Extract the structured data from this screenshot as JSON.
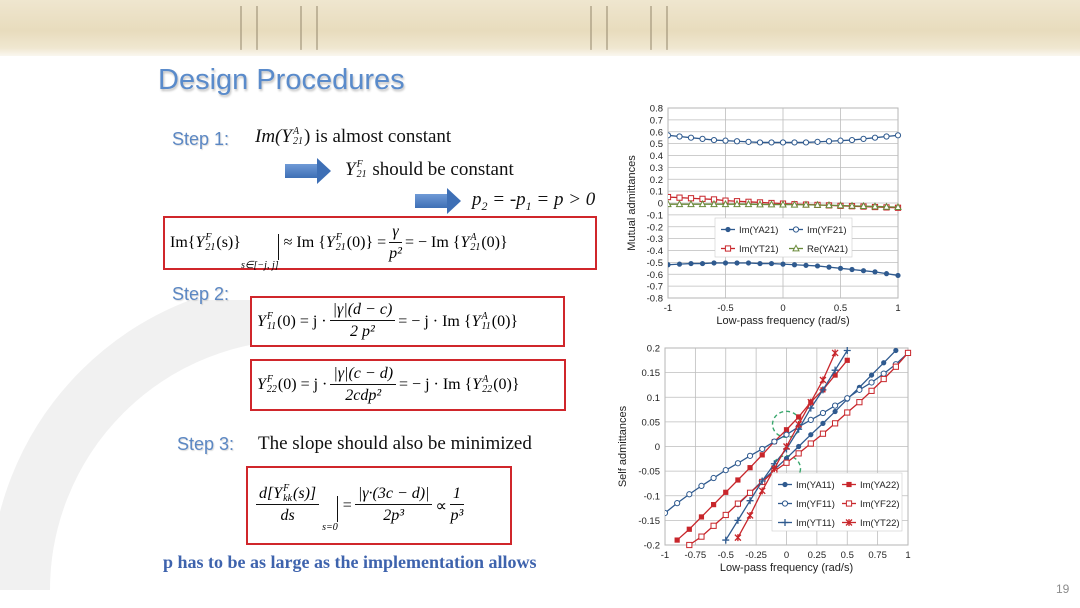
{
  "slide": {
    "title": "Design Procedures",
    "page_number": "19",
    "step1_label": "Step 1:",
    "step2_label": "Step 2:",
    "step3_label": "Step 3:",
    "step1_text": [
      {
        "t": "Im(",
        "c": "it"
      },
      {
        "ss": "Y",
        "sup": "A",
        "sub": "21"
      },
      {
        "t": ") is almost constant"
      }
    ],
    "step1_arrow1_text": [
      {
        "ss": "Y",
        "sup": "F",
        "sub": "21"
      },
      {
        "t": " should be constant"
      }
    ],
    "step1_arrow2_text": [
      {
        "t": "p",
        "c": "it"
      },
      {
        "sub": "2"
      },
      {
        "t": " = -",
        "c": "it"
      },
      {
        "t": "p",
        "c": "it"
      },
      {
        "sub": "1"
      },
      {
        "t": " = p > 0",
        "c": "it"
      }
    ],
    "eq1": [
      {
        "t": "Im "
      },
      {
        "t": "{"
      },
      {
        "ss": "Y",
        "sup": "F",
        "sub": "21"
      },
      {
        "t": "(s)}"
      },
      {
        "eval": "s∈[−j, j]"
      },
      {
        "t": " ≈ Im {"
      },
      {
        "ss": "Y",
        "sup": "F",
        "sub": "21"
      },
      {
        "t": "(0)} = "
      },
      {
        "frac": [
          "γ",
          "p²"
        ]
      },
      {
        "t": " = − Im {"
      },
      {
        "ss": "Y",
        "sup": "A",
        "sub": "21"
      },
      {
        "t": "(0)}"
      }
    ],
    "eq2": [
      {
        "ss": "Y",
        "sup": "F",
        "sub": "11"
      },
      {
        "t": "(0) =  j · "
      },
      {
        "frac": [
          "|γ|(d − c)",
          "2 p²"
        ]
      },
      {
        "t": " = − j · Im {"
      },
      {
        "ss": "Y",
        "sup": "A",
        "sub": "11"
      },
      {
        "t": "(0)}"
      }
    ],
    "eq3": [
      {
        "ss": "Y",
        "sup": "F",
        "sub": "22"
      },
      {
        "t": "(0) =  j · "
      },
      {
        "frac": [
          "|γ|(c − d)",
          "2cdp²"
        ]
      },
      {
        "t": " = − j · Im {"
      },
      {
        "ss": "Y",
        "sup": "A",
        "sub": "22"
      },
      {
        "t": "(0)}"
      }
    ],
    "step3_text": "The slope should also be minimized",
    "eq4": [
      {
        "frac": [
          "d[Y^F_kk(s)]",
          "ds"
        ]
      },
      {
        "eval": "s=0"
      },
      {
        "t": " = "
      },
      {
        "frac": [
          "|γ·(3c − d)|",
          "2p³"
        ]
      },
      {
        "t": " ∝ "
      },
      {
        "frac": [
          "1",
          "p³"
        ]
      }
    ],
    "conclusion": "p has to be as large as the implementation allows"
  },
  "colors": {
    "blue": "#2f5a8f",
    "red": "#c8262b",
    "green": "#6a8a3a",
    "box_border": "#d0262b",
    "title": "#5a8bcb"
  },
  "chart_data": [
    {
      "type": "line",
      "xlabel": "Low-pass frequency (rad/s)",
      "ylabel": "Mutual admittances",
      "xlim": [
        -1,
        1
      ],
      "ylim": [
        -0.8,
        0.8
      ],
      "xticks": [
        "-1",
        "-0.5",
        "0",
        "0.5",
        "1"
      ],
      "yticks": [
        "0.8",
        "0.7",
        "0.6",
        "0.5",
        "0.4",
        "0.3",
        "0.2",
        "0.1",
        "0",
        "-0.1",
        "-0.2",
        "-0.3",
        "-0.4",
        "-0.5",
        "-0.6",
        "-0.7",
        "-0.8"
      ],
      "grid": true,
      "legend": "center",
      "x": [
        -1,
        -0.9,
        -0.8,
        -0.7,
        -0.6,
        -0.5,
        -0.4,
        -0.3,
        -0.2,
        -0.1,
        0,
        0.1,
        0.2,
        0.3,
        0.4,
        0.5,
        0.6,
        0.7,
        0.8,
        0.9,
        1
      ],
      "series": [
        {
          "name": "Im(YA21)",
          "color": "#2f5a8f",
          "marker": "filled-circle",
          "values": [
            -0.52,
            -0.515,
            -0.51,
            -0.51,
            -0.505,
            -0.505,
            -0.505,
            -0.505,
            -0.51,
            -0.51,
            -0.515,
            -0.52,
            -0.525,
            -0.53,
            -0.54,
            -0.55,
            -0.56,
            -0.57,
            -0.58,
            -0.595,
            -0.61
          ]
        },
        {
          "name": "Im(YF21)",
          "color": "#2f5a8f",
          "marker": "open-circle",
          "values": [
            0.57,
            0.56,
            0.55,
            0.54,
            0.53,
            0.525,
            0.52,
            0.515,
            0.51,
            0.51,
            0.51,
            0.51,
            0.51,
            0.515,
            0.52,
            0.525,
            0.53,
            0.54,
            0.55,
            0.56,
            0.57
          ]
        },
        {
          "name": "Im(YT21)",
          "color": "#c8262b",
          "marker": "open-square",
          "values": [
            0.05,
            0.045,
            0.04,
            0.035,
            0.03,
            0.02,
            0.015,
            0.01,
            0.005,
            0,
            -0.005,
            -0.01,
            -0.013,
            -0.016,
            -0.02,
            -0.024,
            -0.027,
            -0.03,
            -0.034,
            -0.037,
            -0.04
          ]
        },
        {
          "name": "Re(YA21)",
          "color": "#6a8a3a",
          "marker": "open-triangle",
          "values": [
            -0.01,
            -0.01,
            -0.01,
            -0.01,
            -0.01,
            -0.01,
            -0.01,
            -0.01,
            -0.012,
            -0.012,
            -0.013,
            -0.014,
            -0.015,
            -0.017,
            -0.019,
            -0.021,
            -0.024,
            -0.026,
            -0.029,
            -0.032,
            -0.035
          ]
        }
      ]
    },
    {
      "type": "line",
      "xlabel": "Low-pass frequency (rad/s)",
      "ylabel": "Self admittances",
      "xlim": [
        -1,
        1
      ],
      "ylim": [
        -0.2,
        0.2
      ],
      "xticks": [
        "-1",
        "-0.75",
        "-0.5",
        "-0.25",
        "0",
        "0.25",
        "0.5",
        "0.75",
        "1"
      ],
      "yticks": [
        "0.2",
        "0.15",
        "0.1",
        "0.05",
        "0",
        "-0.05",
        "-0.1",
        "-0.15",
        "-0.2"
      ],
      "grid": true,
      "legend": "bottom-right",
      "x": [
        -1,
        -0.9,
        -0.8,
        -0.7,
        -0.6,
        -0.5,
        -0.4,
        -0.3,
        -0.2,
        -0.1,
        0,
        0.1,
        0.2,
        0.3,
        0.4,
        0.5,
        0.6,
        0.7,
        0.8,
        0.9,
        1
      ],
      "series": [
        {
          "name": "Im(YA11)",
          "color": "#2f5a8f",
          "marker": "filled-circle",
          "values": [
            null,
            null,
            null,
            null,
            null,
            null,
            -0.118,
            -0.094,
            -0.07,
            -0.047,
            -0.024,
            0,
            0.024,
            0.047,
            0.071,
            0.096,
            0.12,
            0.145,
            0.17,
            0.195,
            null
          ]
        },
        {
          "name": "Im(YA22)",
          "color": "#c8262b",
          "marker": "filled-square",
          "values": [
            null,
            -0.19,
            -0.168,
            -0.143,
            -0.118,
            -0.093,
            -0.068,
            -0.043,
            -0.017,
            0.01,
            0.034,
            0.06,
            0.09,
            0.115,
            0.145,
            0.175,
            null,
            null,
            null,
            null,
            null
          ]
        },
        {
          "name": "Im(YF11)",
          "color": "#2f5a8f",
          "marker": "open-circle",
          "values": [
            -0.135,
            -0.115,
            -0.097,
            -0.08,
            -0.064,
            -0.048,
            -0.034,
            -0.019,
            -0.005,
            0.01,
            0.024,
            0.04,
            0.054,
            0.068,
            0.083,
            0.098,
            0.115,
            0.13,
            0.148,
            0.167,
            0.19
          ]
        },
        {
          "name": "Im(YF22)",
          "color": "#c8262b",
          "marker": "open-square",
          "values": [
            null,
            null,
            -0.2,
            -0.183,
            -0.161,
            -0.139,
            -0.116,
            -0.094,
            -0.072,
            -0.05,
            -0.033,
            -0.014,
            0.006,
            0.026,
            0.047,
            0.069,
            0.09,
            0.113,
            0.137,
            0.162,
            0.19
          ]
        },
        {
          "name": "Im(YT11)",
          "color": "#2f5a8f",
          "marker": "plus",
          "values": [
            null,
            null,
            null,
            null,
            null,
            -0.19,
            -0.15,
            -0.11,
            -0.07,
            -0.035,
            -0.005,
            0.035,
            0.078,
            0.115,
            0.155,
            0.195,
            null,
            null,
            null,
            null,
            null
          ]
        },
        {
          "name": "Im(YT22)",
          "color": "#c8262b",
          "marker": "star",
          "values": [
            null,
            null,
            null,
            null,
            null,
            null,
            -0.185,
            -0.14,
            -0.09,
            -0.045,
            0,
            0.045,
            0.09,
            0.135,
            0.19,
            null,
            null,
            null,
            null,
            null,
            null
          ]
        }
      ]
    }
  ]
}
